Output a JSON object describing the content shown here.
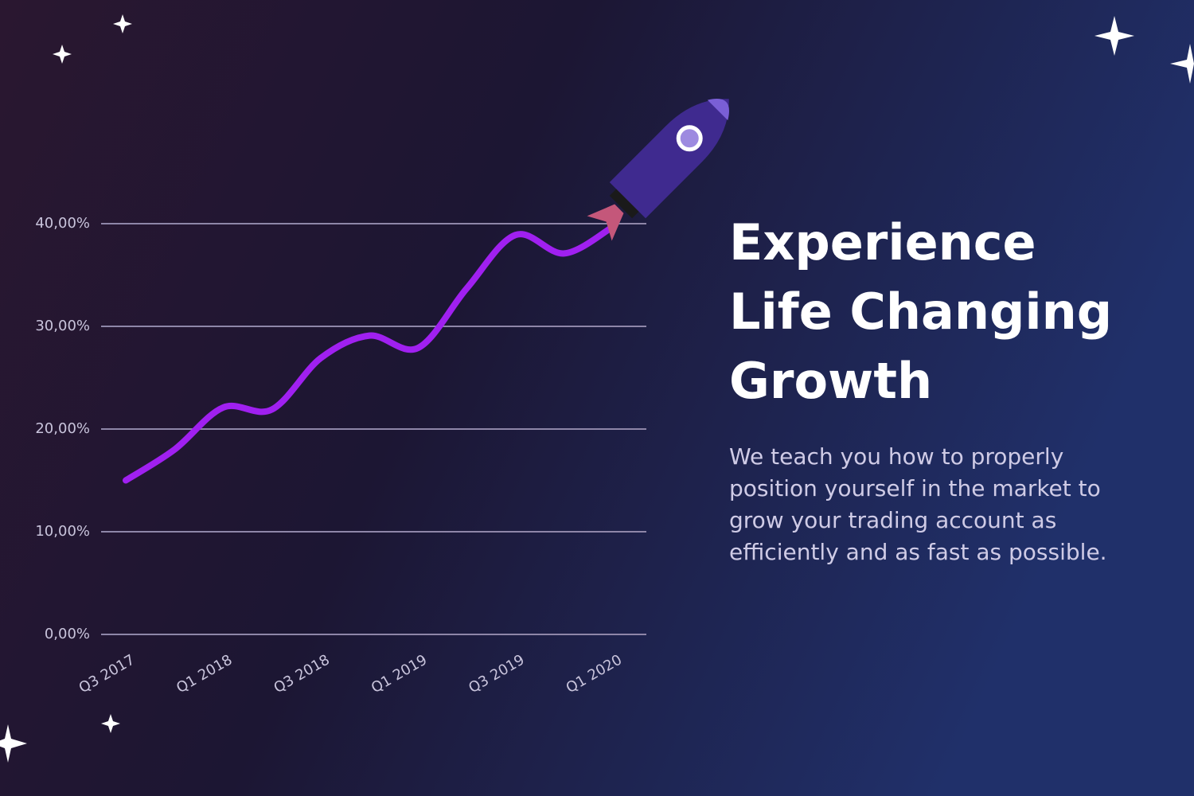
{
  "chart_data": {
    "type": "line",
    "categories": [
      "Q3 2017",
      null,
      "Q1 2018",
      null,
      "Q3 2018",
      null,
      "Q1 2019",
      null,
      "Q3 2019",
      null,
      "Q1 2020"
    ],
    "series": [
      {
        "color": "#a020f0",
        "values": [
          15.0,
          18.0,
          22.1,
          21.9,
          26.9,
          29.1,
          27.9,
          33.7,
          38.9,
          37.1,
          39.7
        ]
      }
    ],
    "ylim": [
      0,
      40
    ],
    "yticks": [
      {
        "value": 0,
        "label": "0,00%"
      },
      {
        "value": 10,
        "label": "10,00%"
      },
      {
        "value": 20,
        "label": "20,00%"
      },
      {
        "value": 30,
        "label": "30,00%"
      },
      {
        "value": 40,
        "label": "40,00%"
      }
    ],
    "grid": true
  },
  "heading": [
    "Experience",
    "Life Changing",
    "Growth"
  ],
  "body": [
    "We teach you how to properly",
    "position yourself in the market to",
    "grow your trading account as",
    "efficiently and as fast as possible."
  ]
}
